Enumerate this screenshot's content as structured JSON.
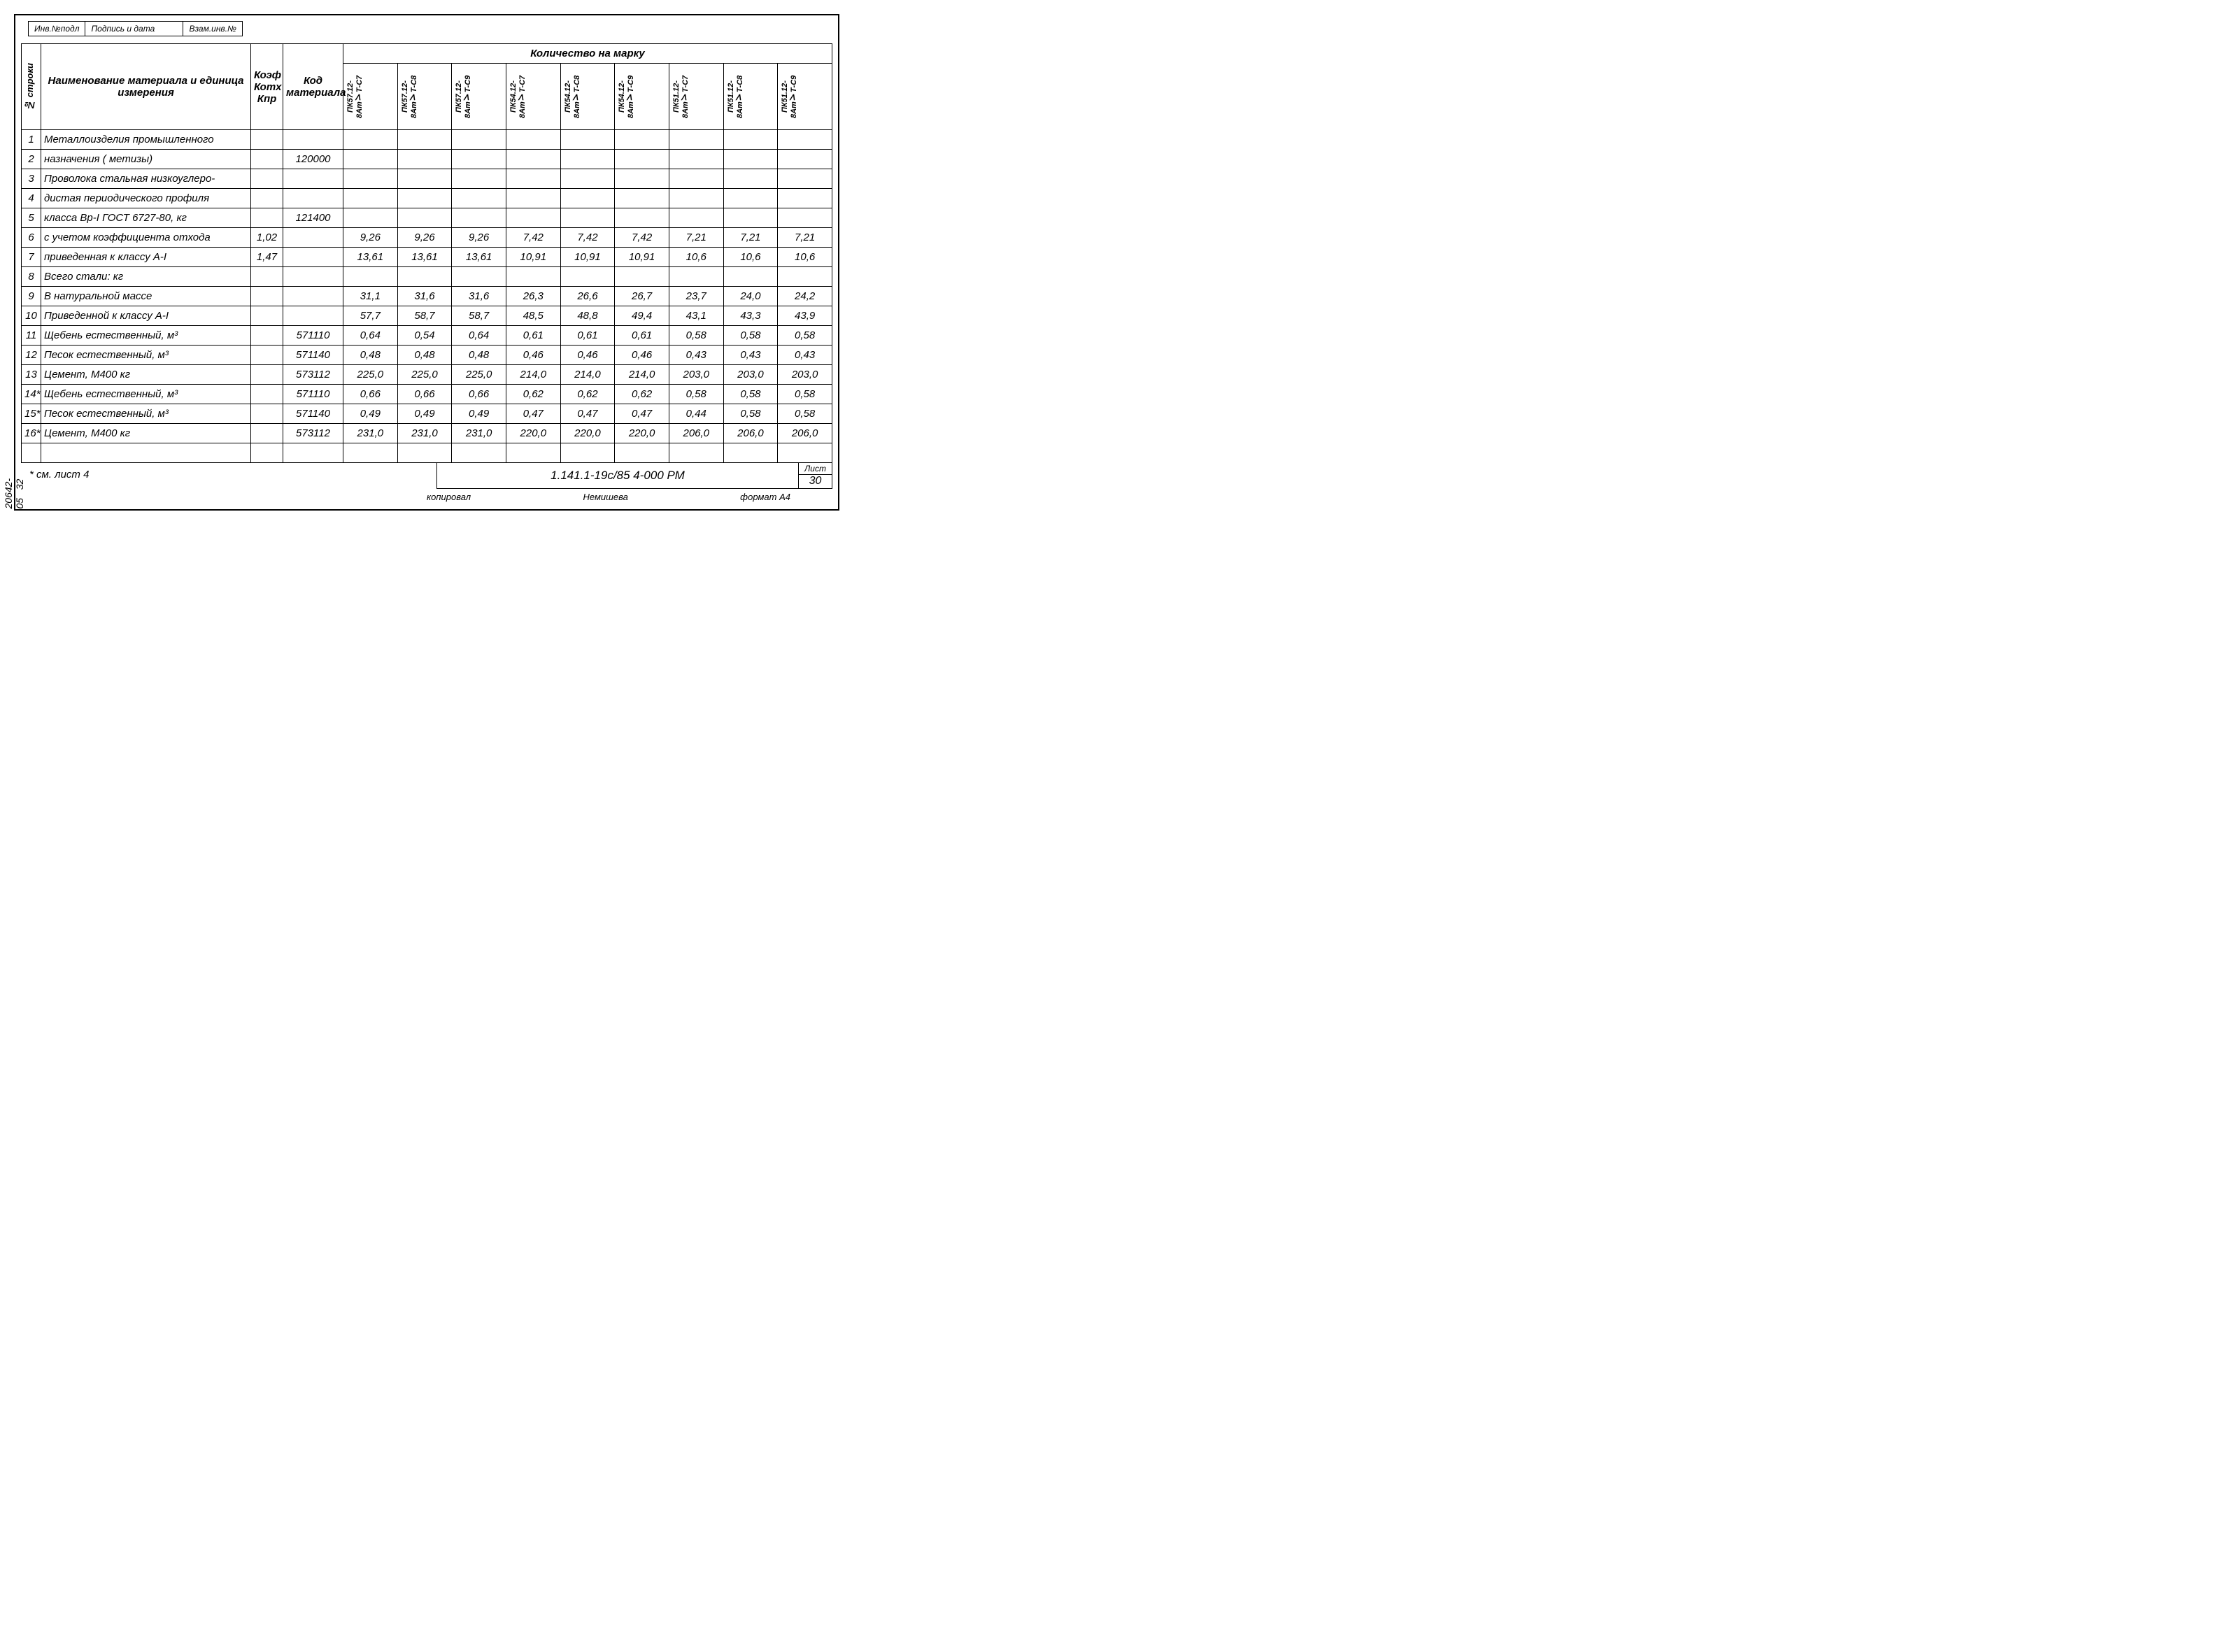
{
  "stamps": {
    "inv_podl": "Инв.№подл",
    "podpis_data": "Подпись и дата",
    "vzam_inv": "Взам.инв.№"
  },
  "header": {
    "num_stroki": "№ строки",
    "naimenovanie": "Наименование материала и единица измерения",
    "koef": "Коэф Котх Кпр",
    "kod": "Код материала",
    "kolichestvo": "Количество на марку"
  },
  "marks": [
    "ПК57.12-8АтⅤТ-С7",
    "ПК57.12-8АтⅤТ-С8",
    "ПК57.12-8АтⅤТ-С9",
    "ПК54.12-8АтⅤТ-С7",
    "ПК54.12-8АтⅤТ-С8",
    "ПК54.12-8АтⅤТ-С9",
    "ПК51.12-8АтⅤТ-С7",
    "ПК51.12-8АтⅤТ-С8",
    "ПК51.12-8АтⅤТ-С9"
  ],
  "rows": [
    {
      "n": "1",
      "name": "Металлоизделия промышленного",
      "koef": "",
      "kod": "",
      "q": [
        "",
        "",
        "",
        "",
        "",
        "",
        "",
        "",
        ""
      ]
    },
    {
      "n": "2",
      "name": "назначения ( метизы)",
      "koef": "",
      "kod": "120000",
      "q": [
        "",
        "",
        "",
        "",
        "",
        "",
        "",
        "",
        ""
      ]
    },
    {
      "n": "3",
      "name": "Проволока стальная низкоуглеро-",
      "koef": "",
      "kod": "",
      "q": [
        "",
        "",
        "",
        "",
        "",
        "",
        "",
        "",
        ""
      ]
    },
    {
      "n": "4",
      "name": "дистая периодического профиля",
      "koef": "",
      "kod": "",
      "q": [
        "",
        "",
        "",
        "",
        "",
        "",
        "",
        "",
        ""
      ]
    },
    {
      "n": "5",
      "name": "класса Вр-I  ГОСТ 6727-80,   кг",
      "koef": "",
      "kod": "121400",
      "q": [
        "",
        "",
        "",
        "",
        "",
        "",
        "",
        "",
        ""
      ]
    },
    {
      "n": "6",
      "name": "с учетом коэффициента отхода",
      "koef": "1,02",
      "kod": "",
      "q": [
        "9,26",
        "9,26",
        "9,26",
        "7,42",
        "7,42",
        "7,42",
        "7,21",
        "7,21",
        "7,21"
      ]
    },
    {
      "n": "7",
      "name": "приведенная к классу А-I",
      "koef": "1,47",
      "kod": "",
      "q": [
        "13,61",
        "13,61",
        "13,61",
        "10,91",
        "10,91",
        "10,91",
        "10,6",
        "10,6",
        "10,6"
      ]
    },
    {
      "n": "8",
      "name": "Всего стали:                       кг",
      "koef": "",
      "kod": "",
      "q": [
        "",
        "",
        "",
        "",
        "",
        "",
        "",
        "",
        ""
      ]
    },
    {
      "n": "9",
      "name": "В натуральной массе",
      "koef": "",
      "kod": "",
      "q": [
        "31,1",
        "31,6",
        "31,6",
        "26,3",
        "26,6",
        "26,7",
        "23,7",
        "24,0",
        "24,2"
      ]
    },
    {
      "n": "10",
      "name": "Приведенной к классу А-I",
      "koef": "",
      "kod": "",
      "q": [
        "57,7",
        "58,7",
        "58,7",
        "48,5",
        "48,8",
        "49,4",
        "43,1",
        "43,3",
        "43,9"
      ]
    },
    {
      "n": "11",
      "name": "Щебень естественный,         м³",
      "koef": "",
      "kod": "571110",
      "q": [
        "0,64",
        "0,54",
        "0,64",
        "0,61",
        "0,61",
        "0,61",
        "0,58",
        "0,58",
        "0,58"
      ]
    },
    {
      "n": "12",
      "name": "Песок естественный,            м³",
      "koef": "",
      "kod": "571140",
      "q": [
        "0,48",
        "0,48",
        "0,48",
        "0,46",
        "0,46",
        "0,46",
        "0,43",
        "0,43",
        "0,43"
      ]
    },
    {
      "n": "13",
      "name": "Цемент,  М400                     кг",
      "koef": "",
      "kod": "573112",
      "q": [
        "225,0",
        "225,0",
        "225,0",
        "214,0",
        "214,0",
        "214,0",
        "203,0",
        "203,0",
        "203,0"
      ]
    },
    {
      "n": "14*",
      "name": "Щебень естественный,         м³",
      "koef": "",
      "kod": "571110",
      "q": [
        "0,66",
        "0,66",
        "0,66",
        "0,62",
        "0,62",
        "0,62",
        "0,58",
        "0,58",
        "0,58"
      ]
    },
    {
      "n": "15*",
      "name": "Песок естественный,            м³",
      "koef": "",
      "kod": "571140",
      "q": [
        "0,49",
        "0,49",
        "0,49",
        "0,47",
        "0,47",
        "0,47",
        "0,44",
        "0,58",
        "0,58"
      ]
    },
    {
      "n": "16*",
      "name": "Цемент,  М400                     кг",
      "koef": "",
      "kod": "573112",
      "q": [
        "231,0",
        "231,0",
        "231,0",
        "220,0",
        "220,0",
        "220,0",
        "206,0",
        "206,0",
        "206,0"
      ]
    },
    {
      "n": "",
      "name": "",
      "koef": "",
      "kod": "",
      "q": [
        "",
        "",
        "",
        "",
        "",
        "",
        "",
        "",
        ""
      ]
    }
  ],
  "footer": {
    "note": "* см. лист 4",
    "docnum": "1.141.1-19с/85 4-000 РМ",
    "sheet_label": "Лист",
    "sheet_num": "30",
    "kopiroval": "копировал",
    "name": "Немишева",
    "format": "формат А4"
  },
  "side": {
    "album": "20642-05",
    "page": "32"
  }
}
